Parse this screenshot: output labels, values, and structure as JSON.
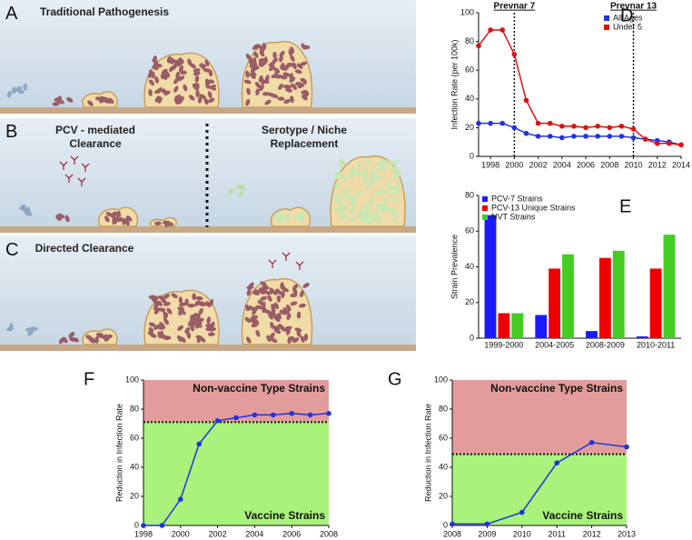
{
  "panels": {
    "A": {
      "label": "A",
      "title": "Traditional Pathogenesis"
    },
    "B": {
      "label": "B",
      "title": "PCV - mediated Clearance",
      "title2": "Serotype / Niche Replacement"
    },
    "C": {
      "label": "C",
      "title": "Directed Clearance"
    }
  },
  "chart_data": [
    {
      "panel_label": "D",
      "type": "line",
      "ylabel": "Infection Rate (per 100k)",
      "x": [
        1997,
        1998,
        1999,
        2000,
        2001,
        2002,
        2003,
        2004,
        2005,
        2006,
        2007,
        2008,
        2009,
        2010,
        2011,
        2012,
        2013,
        2014
      ],
      "xlim": [
        1997,
        2014
      ],
      "xticks": [
        1998,
        2000,
        2002,
        2004,
        2006,
        2008,
        2010,
        2012,
        2014
      ],
      "ylim": [
        0,
        100
      ],
      "yticks": [
        0,
        20,
        40,
        60,
        80,
        100
      ],
      "series": [
        {
          "name": "All Ages",
          "color": "#2233dd",
          "values": [
            23,
            23,
            23,
            20,
            16,
            14,
            14,
            13,
            14,
            14,
            14,
            14,
            14,
            13,
            12,
            11,
            10,
            8
          ]
        },
        {
          "name": "Under 5",
          "color": "#dd1111",
          "values": [
            77,
            88,
            88,
            71,
            39,
            23,
            23,
            21,
            21,
            20,
            21,
            20,
            21,
            19,
            12,
            9,
            9,
            8
          ]
        }
      ],
      "vlines": [
        {
          "x": 2000,
          "label": "Prevnar 7"
        },
        {
          "x": 2010,
          "label": "Prevnar 13"
        }
      ],
      "legend": "upper right"
    },
    {
      "panel_label": "E",
      "type": "bar",
      "ylabel": "Strain Prevalence",
      "categories": [
        "1999-2000",
        "2004-2005",
        "2008-2009",
        "2010-2011"
      ],
      "ylim": [
        0,
        80
      ],
      "yticks": [
        0,
        20,
        40,
        60,
        80
      ],
      "series": [
        {
          "name": "PCV-7 Strains",
          "color": "#1a1aff",
          "values": [
            69,
            13,
            4,
            1
          ]
        },
        {
          "name": "PCV-13 Unique Strains",
          "color": "#ee0000",
          "values": [
            14,
            39,
            45,
            39
          ]
        },
        {
          "name": "NVT Strains",
          "color": "#44cc22",
          "values": [
            14,
            47,
            49,
            58
          ]
        }
      ],
      "legend": "upper left"
    },
    {
      "panel_label": "F",
      "type": "line",
      "ylabel": "Reduction in Infection Rate",
      "x": [
        1998,
        1999,
        2000,
        2001,
        2002,
        2003,
        2004,
        2005,
        2006,
        2007,
        2008
      ],
      "xlim": [
        1998,
        2008
      ],
      "xticks": [
        1998,
        2000,
        2002,
        2004,
        2006,
        2008
      ],
      "ylim": [
        0,
        100
      ],
      "yticks": [
        0,
        20,
        40,
        60,
        80,
        100
      ],
      "series": [
        {
          "color": "#2233dd",
          "values": [
            0,
            0,
            18,
            56,
            72,
            74,
            76,
            76,
            77,
            76,
            77
          ]
        }
      ],
      "threshold": 71,
      "regions": [
        {
          "label": "Non-vaccine Type Strains",
          "color": "#e39c9c"
        },
        {
          "label": "Vaccine Strains",
          "color": "#a9f27b"
        }
      ]
    },
    {
      "panel_label": "G",
      "type": "line",
      "ylabel": "Reduction in Infection Rate",
      "x": [
        2008,
        2009,
        2010,
        2011,
        2012,
        2013
      ],
      "xlim": [
        2008,
        2013
      ],
      "xticks": [
        2008,
        2009,
        2010,
        2011,
        2012,
        2013
      ],
      "ylim": [
        0,
        100
      ],
      "yticks": [
        0,
        20,
        40,
        60,
        80,
        100
      ],
      "series": [
        {
          "color": "#2233dd",
          "values": [
            1,
            1,
            9,
            43,
            57,
            54
          ]
        }
      ],
      "threshold": 49,
      "regions": [
        {
          "label": "Non-vaccine Type Strains",
          "color": "#e39c9c"
        },
        {
          "label": "Vaccine Strains",
          "color": "#a9f27b"
        }
      ]
    }
  ]
}
